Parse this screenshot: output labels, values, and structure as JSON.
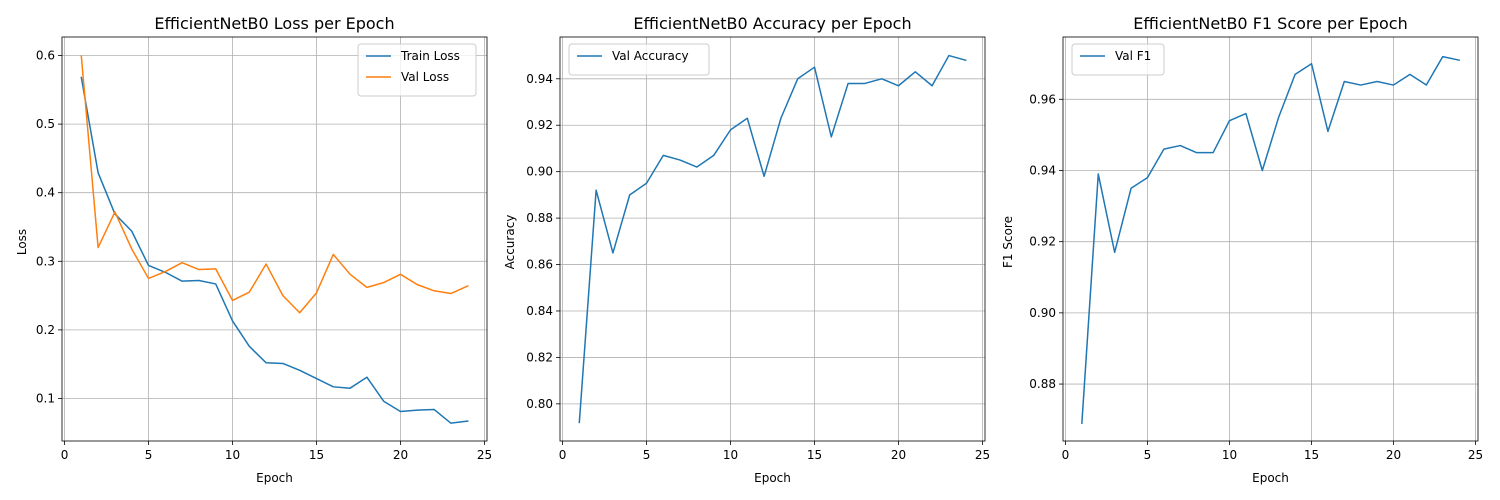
{
  "colors": {
    "blue": "#1f77b4",
    "orange": "#ff7f0e",
    "grid": "#b0b0b0"
  },
  "chart_data": [
    {
      "type": "line",
      "title": "EfficientNetB0 Loss per Epoch",
      "xlabel": "Epoch",
      "ylabel": "Loss",
      "xlim": [
        -0.15,
        25.15
      ],
      "ylim": [
        0.038,
        0.627
      ],
      "xticks": [
        0,
        5,
        10,
        15,
        20,
        25
      ],
      "yticks": [
        0.1,
        0.2,
        0.3,
        0.4,
        0.5,
        0.6
      ],
      "ytick_labels": [
        "0.1",
        "0.2",
        "0.3",
        "0.4",
        "0.5",
        "0.6"
      ],
      "grid": true,
      "legend_position": "upper-right",
      "x": [
        1,
        2,
        3,
        4,
        5,
        6,
        7,
        8,
        9,
        10,
        11,
        12,
        13,
        14,
        15,
        16,
        17,
        18,
        19,
        20,
        21,
        22,
        23,
        24
      ],
      "series": [
        {
          "name": "Train Loss",
          "color": "#1f77b4",
          "values": [
            0.568,
            0.429,
            0.369,
            0.344,
            0.294,
            0.284,
            0.271,
            0.272,
            0.267,
            0.213,
            0.176,
            0.152,
            0.151,
            0.141,
            0.129,
            0.117,
            0.115,
            0.131,
            0.096,
            0.081,
            0.083,
            0.084,
            0.064,
            0.067
          ]
        },
        {
          "name": "Val Loss",
          "color": "#ff7f0e",
          "values": [
            0.599,
            0.32,
            0.372,
            0.318,
            0.275,
            0.285,
            0.298,
            0.288,
            0.289,
            0.243,
            0.255,
            0.296,
            0.25,
            0.225,
            0.254,
            0.31,
            0.281,
            0.262,
            0.269,
            0.281,
            0.266,
            0.257,
            0.253,
            0.264
          ]
        }
      ]
    },
    {
      "type": "line",
      "title": "EfficientNetB0 Accuracy per Epoch",
      "xlabel": "Epoch",
      "ylabel": "Accuracy",
      "xlim": [
        -0.15,
        25.15
      ],
      "ylim": [
        0.784,
        0.958
      ],
      "xticks": [
        0,
        5,
        10,
        15,
        20,
        25
      ],
      "yticks": [
        0.8,
        0.82,
        0.84,
        0.86,
        0.88,
        0.9,
        0.92,
        0.94
      ],
      "ytick_labels": [
        "0.80",
        "0.82",
        "0.84",
        "0.86",
        "0.88",
        "0.90",
        "0.92",
        "0.94"
      ],
      "grid": true,
      "legend_position": "upper-left",
      "x": [
        1,
        2,
        3,
        4,
        5,
        6,
        7,
        8,
        9,
        10,
        11,
        12,
        13,
        14,
        15,
        16,
        17,
        18,
        19,
        20,
        21,
        22,
        23,
        24
      ],
      "series": [
        {
          "name": "Val Accuracy",
          "color": "#1f77b4",
          "values": [
            0.792,
            0.892,
            0.865,
            0.89,
            0.895,
            0.907,
            0.905,
            0.902,
            0.907,
            0.918,
            0.923,
            0.898,
            0.923,
            0.94,
            0.945,
            0.915,
            0.938,
            0.938,
            0.94,
            0.937,
            0.943,
            0.937,
            0.95,
            0.948
          ]
        }
      ]
    },
    {
      "type": "line",
      "title": "EfficientNetB0 F1 Score per Epoch",
      "xlabel": "Epoch",
      "ylabel": "F1 Score",
      "xlim": [
        -0.15,
        25.15
      ],
      "ylim": [
        0.864,
        0.9775
      ],
      "xticks": [
        0,
        5,
        10,
        15,
        20,
        25
      ],
      "yticks": [
        0.88,
        0.9,
        0.92,
        0.94,
        0.96
      ],
      "ytick_labels": [
        "0.88",
        "0.90",
        "0.92",
        "0.94",
        "0.96"
      ],
      "grid": true,
      "legend_position": "upper-left",
      "x": [
        1,
        2,
        3,
        4,
        5,
        6,
        7,
        8,
        9,
        10,
        11,
        12,
        13,
        14,
        15,
        16,
        17,
        18,
        19,
        20,
        21,
        22,
        23,
        24
      ],
      "series": [
        {
          "name": "Val F1",
          "color": "#1f77b4",
          "values": [
            0.869,
            0.939,
            0.917,
            0.935,
            0.938,
            0.946,
            0.947,
            0.945,
            0.945,
            0.954,
            0.956,
            0.94,
            0.955,
            0.967,
            0.97,
            0.951,
            0.965,
            0.964,
            0.965,
            0.964,
            0.967,
            0.964,
            0.972,
            0.971
          ]
        }
      ]
    }
  ]
}
